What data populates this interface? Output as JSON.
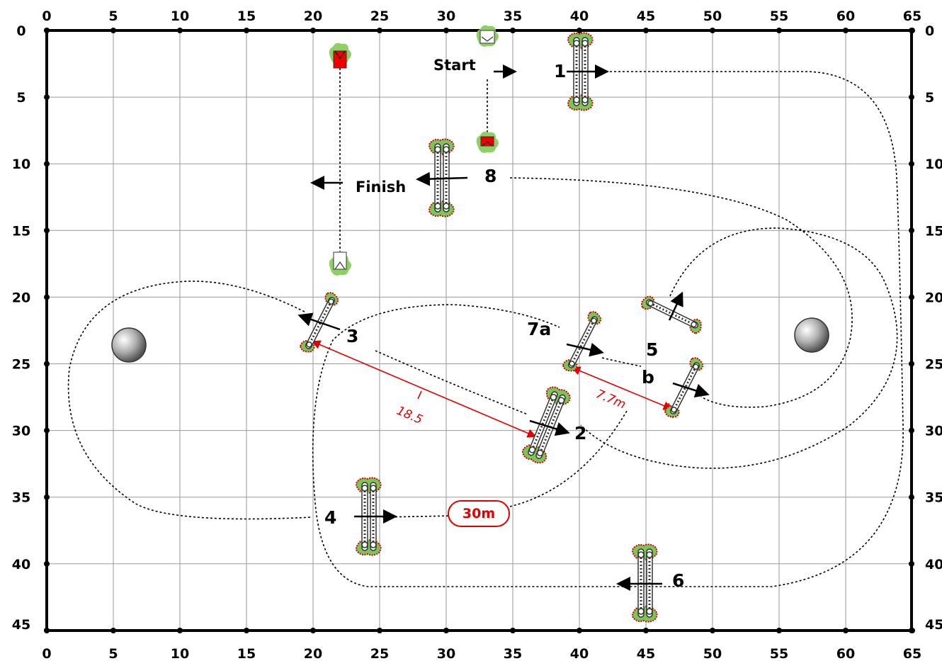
{
  "course": {
    "x_ticks": [
      "0",
      "5",
      "10",
      "15",
      "20",
      "25",
      "30",
      "35",
      "40",
      "45",
      "50",
      "55",
      "60",
      "65"
    ],
    "y_ticks": [
      "0",
      "5",
      "10",
      "15",
      "20",
      "25",
      "30",
      "35",
      "40",
      "45"
    ],
    "labels": {
      "start": "Start",
      "finish": "Finish",
      "j1": "1",
      "j2": "2",
      "j3": "3",
      "j4": "4",
      "j5": "5",
      "jb": "b",
      "j6": "6",
      "j7a": "7a",
      "j8": "8"
    },
    "measurements": {
      "m_18": "18.5",
      "m_7": "7.7m",
      "m_30": "30m"
    }
  }
}
